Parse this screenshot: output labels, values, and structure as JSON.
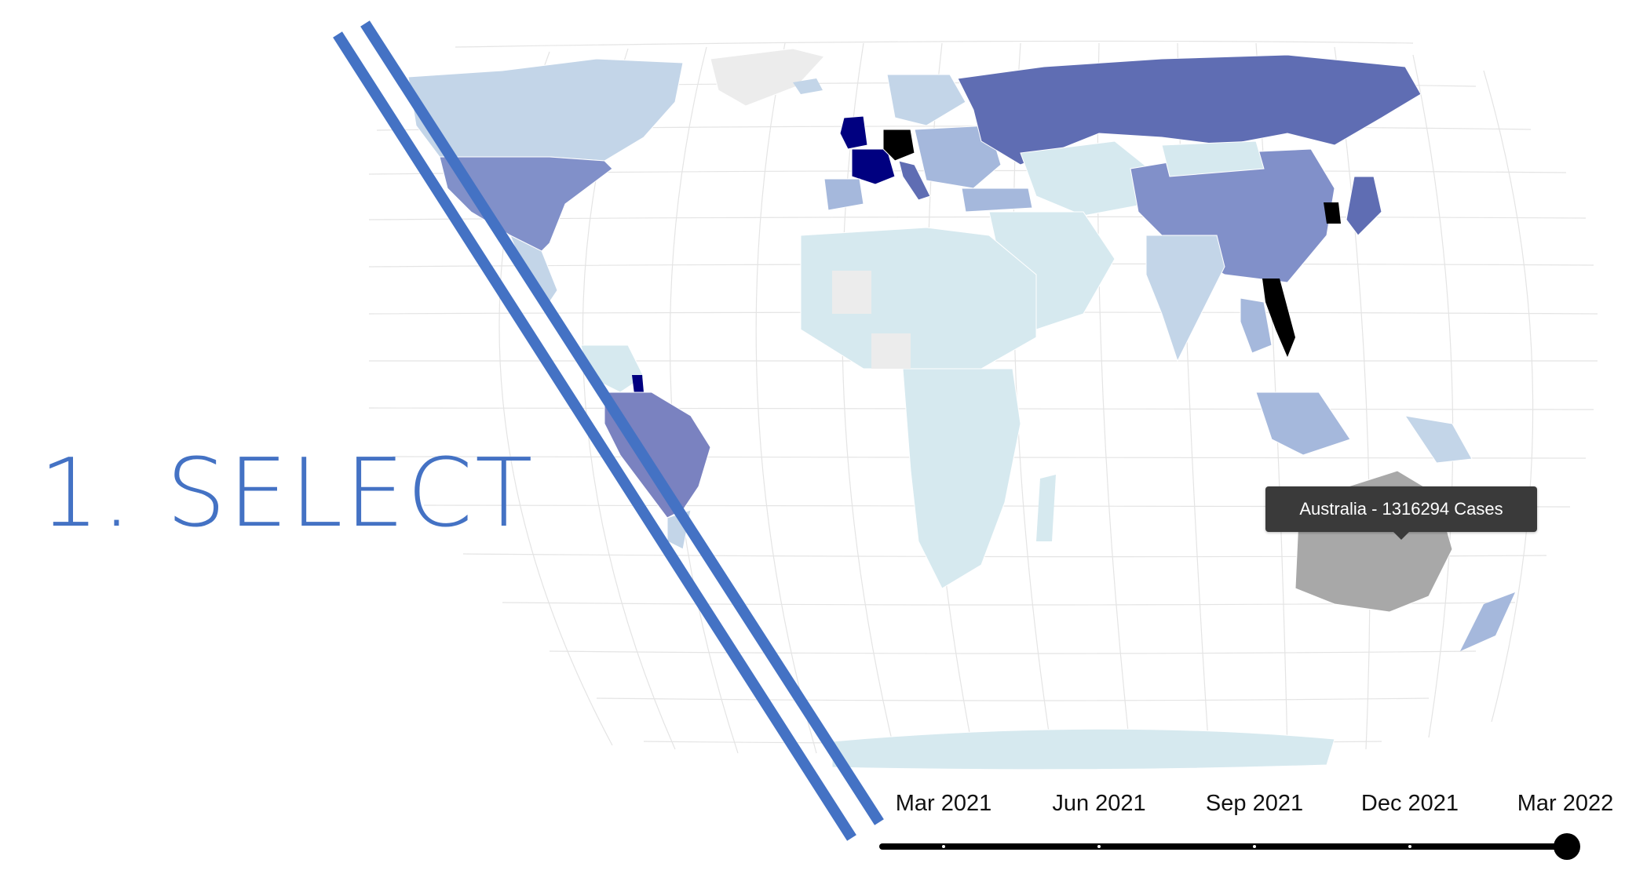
{
  "slide": {
    "heading": "1. SELECT",
    "accent_color": "#4472c4"
  },
  "map": {
    "projection": "world choropleth (curved graticule)",
    "metric": "Cases",
    "color_scale": [
      "#d6e9ef",
      "#c3d5e8",
      "#a5b8dc",
      "#8190c9",
      "#5f6db3",
      "#000080",
      "#000000"
    ],
    "no_data_color": "#ececec",
    "hover_color": "#a8a8a8",
    "hovered_country": "Australia"
  },
  "tooltip": {
    "text": "Australia - 1316294 Cases"
  },
  "timeline": {
    "ticks": [
      "Mar 2021",
      "Jun 2021",
      "Sep 2021",
      "Dec 2021",
      "Mar 2022"
    ],
    "selected": "Mar 2022",
    "position": 1.0
  }
}
